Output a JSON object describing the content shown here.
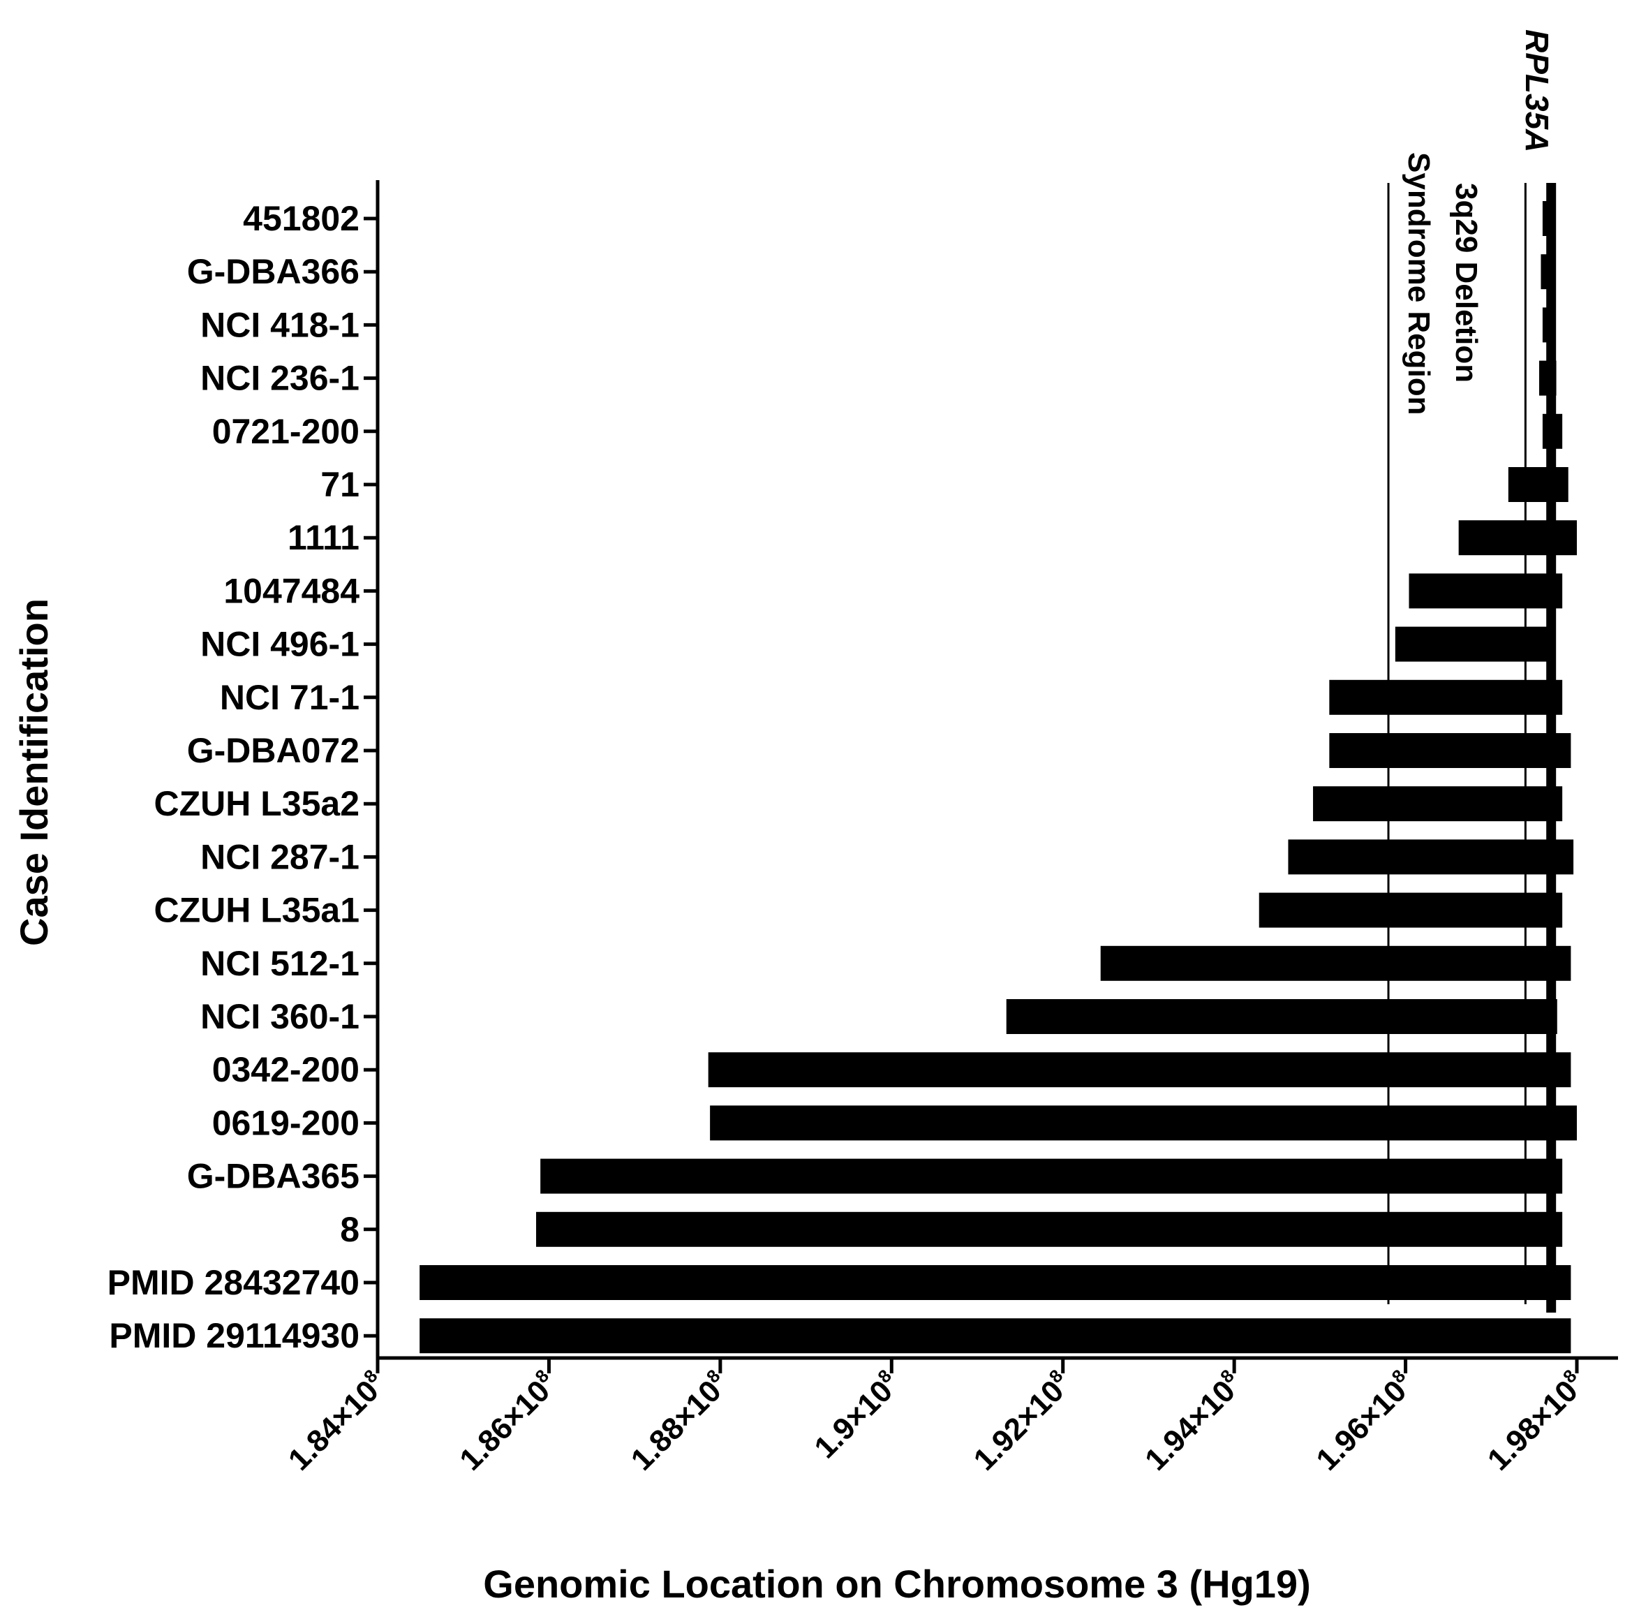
{
  "chart_data": {
    "type": "bar",
    "orientation": "horizontal",
    "xlabel": "Genomic  Location on Chromosome 3 (Hg19)",
    "ylabel": "Case  Identification",
    "xlim": [
      184000000,
      199200000
    ],
    "xticks": [
      184000000,
      186000000,
      188000000,
      190000000,
      192000000,
      194000000,
      196000000,
      198000000
    ],
    "xtick_labels": [
      {
        "mantissa": "1.84",
        "exp": "8"
      },
      {
        "mantissa": "1.86",
        "exp": "8"
      },
      {
        "mantissa": "1.88",
        "exp": "8"
      },
      {
        "mantissa": "1.9",
        "exp": "8"
      },
      {
        "mantissa": "1.92",
        "exp": "8"
      },
      {
        "mantissa": "1.94",
        "exp": "8"
      },
      {
        "mantissa": "1.96",
        "exp": "8"
      },
      {
        "mantissa": "1.98",
        "exp": "8"
      }
    ],
    "tick_times": "×10",
    "grid": false,
    "legend": "none",
    "bar_color": "#000000",
    "deletions": [
      {
        "case": "451802",
        "start": 197600000,
        "end": 197750000
      },
      {
        "case": "G-DBA366",
        "start": 197580000,
        "end": 197740000
      },
      {
        "case": "NCI 418-1",
        "start": 197600000,
        "end": 197750000
      },
      {
        "case": "NCI 236-1",
        "start": 197560000,
        "end": 197760000
      },
      {
        "case": "0721-200",
        "start": 197600000,
        "end": 197830000
      },
      {
        "case": "71",
        "start": 197200000,
        "end": 197900000
      },
      {
        "case": "1111",
        "start": 196620000,
        "end": 198000000
      },
      {
        "case": "1047484",
        "start": 196040000,
        "end": 197830000
      },
      {
        "case": "NCI 496-1",
        "start": 195880000,
        "end": 197700000
      },
      {
        "case": "NCI 71-1",
        "start": 195110000,
        "end": 197830000
      },
      {
        "case": "G-DBA072",
        "start": 195110000,
        "end": 197930000
      },
      {
        "case": "CZUH L35a2",
        "start": 194920000,
        "end": 197830000
      },
      {
        "case": "NCI 287-1",
        "start": 194630000,
        "end": 197960000
      },
      {
        "case": "CZUH L35a1",
        "start": 194290000,
        "end": 197830000
      },
      {
        "case": "NCI 512-1",
        "start": 192440000,
        "end": 197930000
      },
      {
        "case": "NCI 360-1",
        "start": 191340000,
        "end": 197770000
      },
      {
        "case": "0342-200",
        "start": 187860000,
        "end": 197930000
      },
      {
        "case": "0619-200",
        "start": 187880000,
        "end": 198000000
      },
      {
        "case": "G-DBA365",
        "start": 185900000,
        "end": 197830000
      },
      {
        "case": "8",
        "start": 185850000,
        "end": 197830000
      },
      {
        "case": "PMID 28432740",
        "start": 184490000,
        "end": 197930000
      },
      {
        "case": "PMID 29114930",
        "start": 184490000,
        "end": 197930000
      }
    ],
    "reference_lines": [
      {
        "x": 195800000,
        "label_lines": [
          "Syndrome Region"
        ]
      },
      {
        "x": 197400000,
        "label_lines": [
          "3q29 Deletion"
        ]
      },
      {
        "x": 197700000,
        "label_lines": [
          "RPL35A"
        ],
        "italic": true
      }
    ]
  }
}
